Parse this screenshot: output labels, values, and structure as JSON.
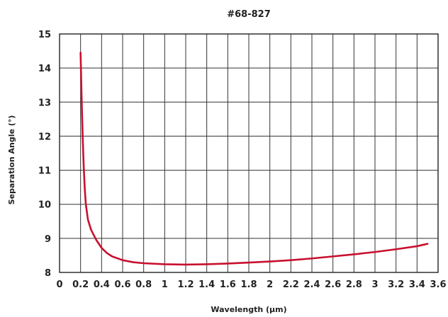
{
  "chart_data": {
    "type": "line",
    "title": "#68-827",
    "xlabel": "Wavelength (µm)",
    "ylabel": "Separation Angle (°)",
    "xlim": [
      0,
      3.6
    ],
    "ylim": [
      8,
      15
    ],
    "xticks": [
      0,
      0.2,
      0.4,
      0.6,
      0.8,
      1,
      1.2,
      1.4,
      1.6,
      1.8,
      2,
      2.2,
      2.4,
      2.6,
      2.8,
      3,
      3.2,
      3.4,
      3.6
    ],
    "xtick_labels": [
      "0",
      "0.2",
      "0.4",
      "0.6",
      "0.8",
      "1",
      "1.2",
      "1.4",
      "1.6",
      "1.8",
      "2",
      "2.2",
      "2.4",
      "2.6",
      "2.8",
      "3",
      "3.2",
      "3.4",
      "3.6"
    ],
    "yticks": [
      8,
      9,
      10,
      11,
      12,
      13,
      14,
      15
    ],
    "ytick_labels": [
      "8",
      "9",
      "10",
      "11",
      "12",
      "13",
      "14",
      "15"
    ],
    "grid": true,
    "color": "#c8102e",
    "series": [
      {
        "x": [
          0.2,
          0.21,
          0.22,
          0.23,
          0.24,
          0.25,
          0.27,
          0.3,
          0.35,
          0.4,
          0.45,
          0.5,
          0.6,
          0.7,
          0.8,
          1.0,
          1.2,
          1.4,
          1.6,
          1.8,
          2.0,
          2.2,
          2.4,
          2.6,
          2.8,
          3.0,
          3.2,
          3.4,
          3.5
        ],
        "y": [
          14.45,
          13.1,
          12.0,
          11.1,
          10.45,
          10.0,
          9.55,
          9.25,
          8.95,
          8.72,
          8.57,
          8.47,
          8.36,
          8.3,
          8.27,
          8.24,
          8.23,
          8.24,
          8.26,
          8.29,
          8.32,
          8.36,
          8.41,
          8.47,
          8.53,
          8.6,
          8.68,
          8.77,
          8.84
        ]
      }
    ]
  }
}
